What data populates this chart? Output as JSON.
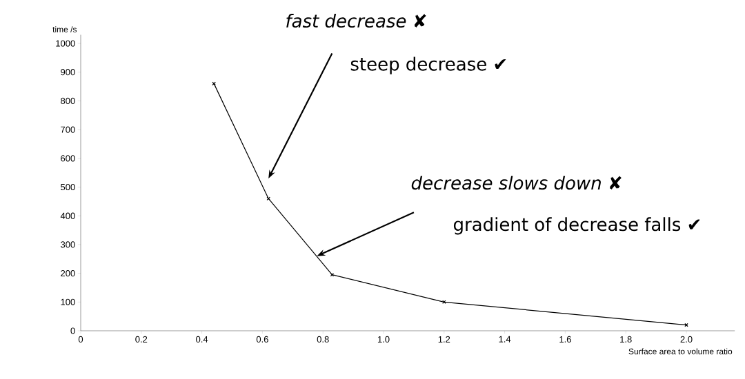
{
  "chart_data": {
    "type": "line",
    "xlabel": "Surface area to volume ratio",
    "ylabel": "time /s",
    "x": [
      0.44,
      0.62,
      0.83,
      1.2,
      2.0
    ],
    "values": [
      860,
      460,
      195,
      100,
      20
    ],
    "color": "#000000",
    "marker": "cross",
    "line_style": "solid",
    "grid": false,
    "xlim": [
      0,
      2.16
    ],
    "ylim": [
      0,
      1030
    ],
    "xticks": [
      0,
      0.2,
      0.4,
      0.6,
      0.8,
      {
        "value": 1,
        "label": "1.0"
      },
      1.2,
      1.4,
      1.6,
      1.8,
      {
        "value": 2,
        "label": "2.0"
      }
    ],
    "yticks": [
      0,
      100,
      200,
      300,
      400,
      500,
      600,
      700,
      800,
      900,
      1000
    ],
    "annotations": [
      "*fast decrease* ✘",
      "steep decrease ✔",
      "*decrease slows down* ✘",
      "gradient of decrease falls ✔"
    ]
  }
}
